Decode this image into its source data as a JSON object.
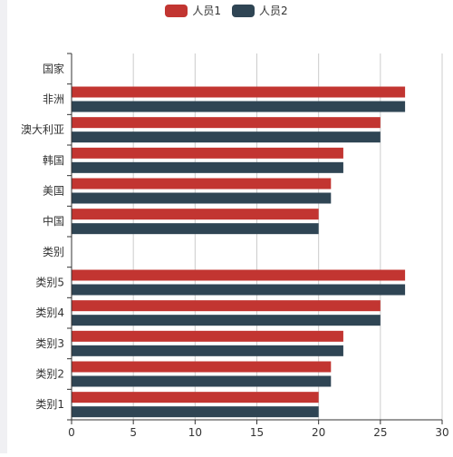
{
  "chart_data": {
    "type": "bar",
    "orientation": "horizontal",
    "categories": [
      "类别1",
      "类别2",
      "类别3",
      "类别4",
      "类别5",
      "类别",
      "中国",
      "美国",
      "韩国",
      "澳大利亚",
      "非洲",
      "国家"
    ],
    "series": [
      {
        "name": "人员1",
        "color": "#c23531",
        "values": [
          20,
          21,
          22,
          25,
          27,
          null,
          20,
          21,
          22,
          25,
          27,
          null
        ]
      },
      {
        "name": "人员2",
        "color": "#2f4554",
        "values": [
          20,
          21,
          22,
          25,
          27,
          null,
          20,
          21,
          22,
          25,
          27,
          null
        ]
      }
    ],
    "xlim": [
      0,
      30
    ],
    "xticks": [
      0,
      5,
      10,
      15,
      20,
      25,
      30
    ],
    "grid": true,
    "legend_position": "top-center"
  }
}
